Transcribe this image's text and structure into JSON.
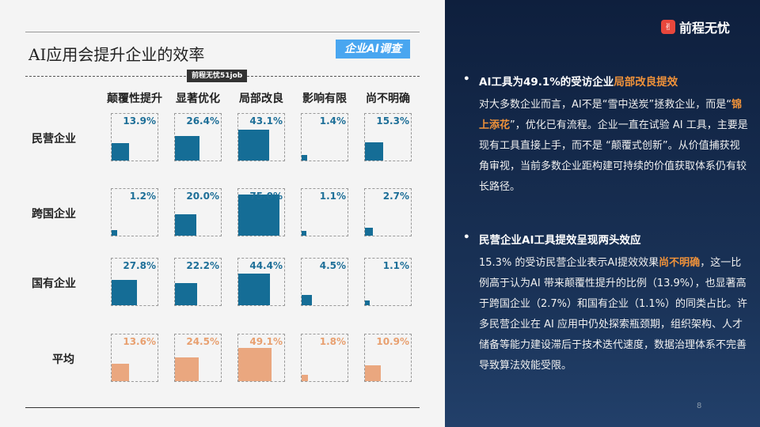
{
  "title": "AI应用会提升企业的效率",
  "badge": "企业AI调查",
  "source_tag": "前程无忧51job",
  "columns": [
    "颠覆性提升",
    "显著优化",
    "局部改良",
    "影响有限",
    "尚不明确"
  ],
  "rows": [
    {
      "label": "民营企业",
      "values": [
        13.9,
        26.4,
        43.1,
        1.4,
        15.3
      ],
      "labels": [
        "13.9%",
        "26.4%",
        "43.1%",
        "1.4%",
        "15.3%"
      ],
      "color": "#156d96"
    },
    {
      "label": "跨国企业",
      "values": [
        1.2,
        20.0,
        75.0,
        1.1,
        2.7
      ],
      "labels": [
        "1.2%",
        "20.0%",
        "75.0%",
        "1.1%",
        "2.7%"
      ],
      "color": "#156d96"
    },
    {
      "label": "国有企业",
      "values": [
        27.8,
        22.2,
        44.4,
        4.5,
        1.1
      ],
      "labels": [
        "27.8%",
        "22.2%",
        "44.4%",
        "4.5%",
        "1.1%"
      ],
      "color": "#156d96"
    },
    {
      "label": "平均",
      "values": [
        13.6,
        24.5,
        49.1,
        1.8,
        10.9
      ],
      "labels": [
        "13.6%",
        "24.5%",
        "49.1%",
        "1.8%",
        "10.9%"
      ],
      "color": "#eaa77f"
    }
  ],
  "logo": {
    "icon": "51job-logo-icon",
    "text": "前程无忧"
  },
  "sections": [
    {
      "h_pre": "AI工具为49.1%的受访企业",
      "h_hl": "局部改良提效",
      "p1": "对大多数企业而言，AI不是“雪中送炭”拯救企业，而是“",
      "p_hl": "锦上添花",
      "p2": "”，优化已有流程。企业一直在试验 AI 工具，主要是现有工具直接上手，而不是 “颠覆式创新”。从价值捕获视角审视，当前多数企业距构建可持续的价值获取体系仍有较长路径。"
    },
    {
      "h_pre": "民营企业AI工具提效呈现两头效应",
      "h_hl": "",
      "p1": "15.3% 的受访民营企业表示AI提效效果",
      "p_hl": "尚不明确",
      "p2": "，这一比例高于认为AI 带来颠覆性提升的比例（13.9%），也显著高于跨国企业（2.7%）和国有企业（1.1%）的同类占比。许多民营企业在 AI 应用中仍处探索瓶颈期，组织架构、人才储备等能力建设滞后于技术迭代速度，数据治理体系不完善导致算法效能受限。"
    }
  ],
  "page_number": "8"
}
